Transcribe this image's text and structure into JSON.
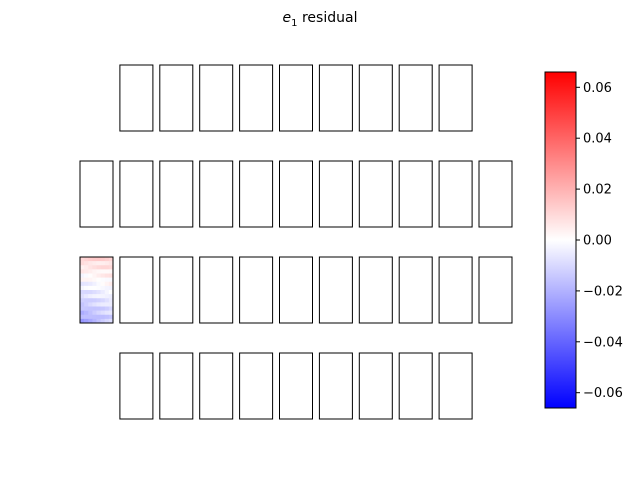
{
  "title": {
    "symbol": "e",
    "subscript": "1",
    "suffix": " residual"
  },
  "chart_data": {
    "type": "heatmap",
    "title": "e1 residual",
    "layout": "grid of rectangular sensor panels in 4 rows",
    "rows": [
      {
        "row": 1,
        "panel_count": 9,
        "columns_occupied": [
          2,
          3,
          4,
          5,
          6,
          7,
          8,
          9,
          10
        ]
      },
      {
        "row": 2,
        "panel_count": 11,
        "columns_occupied": [
          1,
          2,
          3,
          4,
          5,
          6,
          7,
          8,
          9,
          10,
          11
        ]
      },
      {
        "row": 3,
        "panel_count": 11,
        "columns_occupied": [
          1,
          2,
          3,
          4,
          5,
          6,
          7,
          8,
          9,
          10,
          11
        ]
      },
      {
        "row": 4,
        "panel_count": 9,
        "columns_occupied": [
          2,
          3,
          4,
          5,
          6,
          7,
          8,
          9,
          10
        ]
      }
    ],
    "filled_panel": {
      "row": 3,
      "column": 1,
      "values_range": [
        -0.02,
        0.01
      ],
      "pattern": "light red toward top, light blue toward bottom-left"
    },
    "colorbar": {
      "colormap": "bwr",
      "range": [
        -0.066,
        0.066
      ],
      "ticks": [
        0.06,
        0.04,
        0.02,
        0.0,
        -0.02,
        -0.04,
        -0.06
      ],
      "tick_labels": [
        "0.06",
        "0.04",
        "0.02",
        "0.00",
        "−0.02",
        "−0.04",
        "−0.06"
      ]
    }
  }
}
